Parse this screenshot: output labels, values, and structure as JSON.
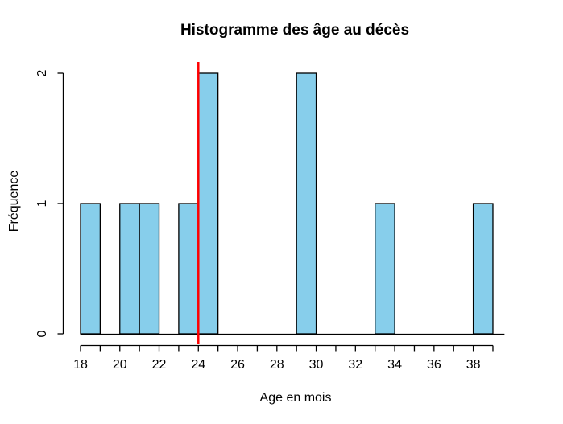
{
  "figure": {
    "title": "Histogramme des âge au décès",
    "xlabel": "Age en mois",
    "ylabel": "Fréquence"
  },
  "chart_data": {
    "type": "bar",
    "subtype": "histogram",
    "title": "Histogramme des âge au décès",
    "xlabel": "Age en mois",
    "ylabel": "Fréquence",
    "xlim": [
      18,
      39
    ],
    "ylim": [
      0,
      2
    ],
    "grid": false,
    "bin_width": 1,
    "bins": [
      {
        "start": 18,
        "end": 19,
        "count": 1
      },
      {
        "start": 19,
        "end": 20,
        "count": 0
      },
      {
        "start": 20,
        "end": 21,
        "count": 1
      },
      {
        "start": 21,
        "end": 22,
        "count": 1
      },
      {
        "start": 22,
        "end": 23,
        "count": 0
      },
      {
        "start": 23,
        "end": 24,
        "count": 1
      },
      {
        "start": 24,
        "end": 25,
        "count": 2
      },
      {
        "start": 25,
        "end": 26,
        "count": 0
      },
      {
        "start": 26,
        "end": 27,
        "count": 0
      },
      {
        "start": 27,
        "end": 28,
        "count": 0
      },
      {
        "start": 28,
        "end": 29,
        "count": 0
      },
      {
        "start": 29,
        "end": 30,
        "count": 2
      },
      {
        "start": 30,
        "end": 31,
        "count": 0
      },
      {
        "start": 31,
        "end": 32,
        "count": 0
      },
      {
        "start": 32,
        "end": 33,
        "count": 0
      },
      {
        "start": 33,
        "end": 34,
        "count": 1
      },
      {
        "start": 34,
        "end": 35,
        "count": 0
      },
      {
        "start": 35,
        "end": 36,
        "count": 0
      },
      {
        "start": 36,
        "end": 37,
        "count": 0
      },
      {
        "start": 37,
        "end": 38,
        "count": 0
      },
      {
        "start": 38,
        "end": 39,
        "count": 1
      }
    ],
    "x_ticks": [
      18,
      19,
      20,
      21,
      22,
      23,
      24,
      25,
      26,
      27,
      28,
      29,
      30,
      31,
      32,
      33,
      34,
      35,
      36,
      37,
      38,
      39
    ],
    "x_tick_labels": [
      "18",
      "20",
      "22",
      "24",
      "26",
      "28",
      "30",
      "32",
      "34",
      "36",
      "38"
    ],
    "x_labeled_values": [
      18,
      20,
      22,
      24,
      26,
      28,
      30,
      32,
      34,
      36,
      38
    ],
    "y_ticks": [
      0,
      1,
      2
    ],
    "y_tick_labels": [
      "0",
      "1",
      "2"
    ],
    "vline": {
      "x": 24,
      "color": "#FF0000"
    },
    "baseline": {
      "y": 0,
      "from": 18,
      "to": 40
    },
    "colors": {
      "bar_fill": "#87CEEB",
      "bar_border": "#000000",
      "axis": "#000000",
      "reference_line": "#FF0000",
      "background": "#FFFFFF",
      "text": "#000000"
    }
  }
}
